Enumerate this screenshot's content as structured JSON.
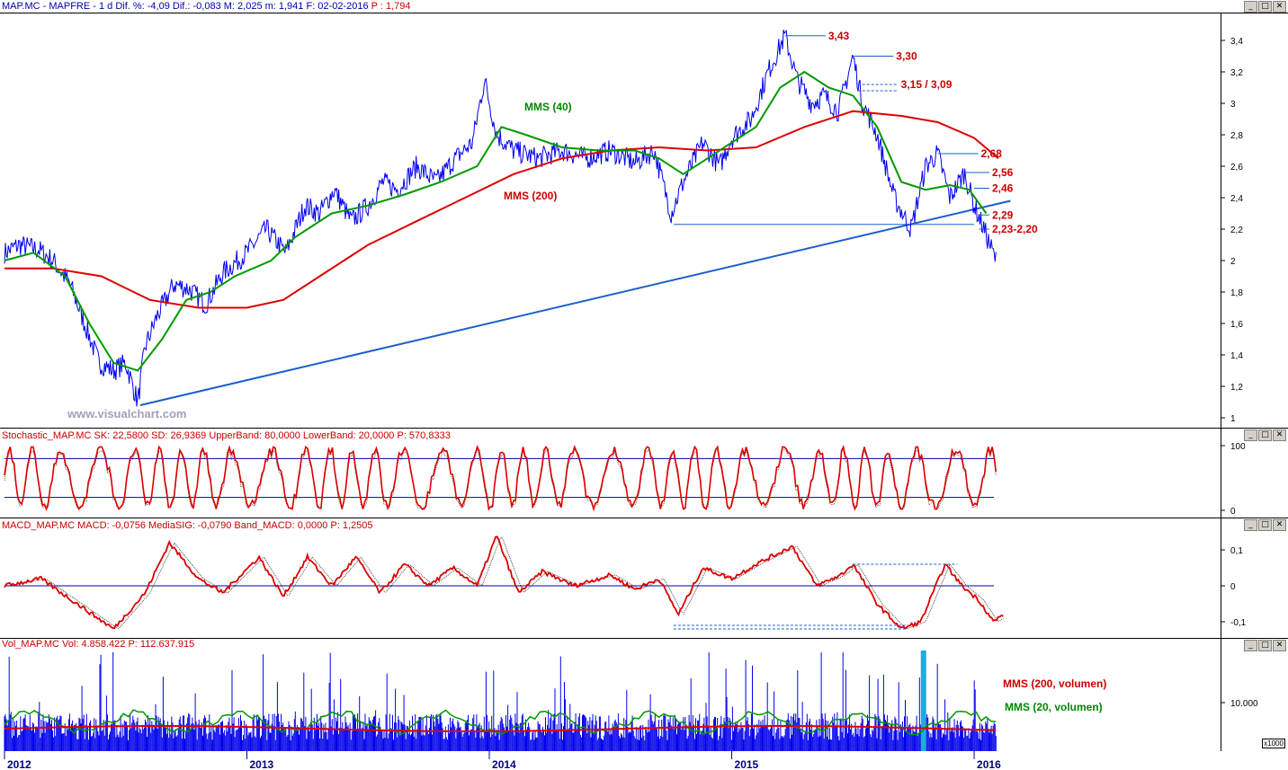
{
  "headers": {
    "price": {
      "main": "MAP.MC - MAPFRE - 1 d Dif. %: -4,09 Dif.: -0,083 M: 2,025 m: 1,941 F: 02-02-2016",
      "red": "P : 1,794"
    },
    "stoch": "Stochastic_MAP.MC SK: 22,5800 SD: 26,9369 UpperBand: 80,0000 LowerBand: 20,0000 P: 570,8333",
    "macd": "MACD_MAP.MC MACD: -0,0756 MediaSIG: -0,0790 Band_MACD: 0,0000 P: 1,2505",
    "vol": "Vol_MAP.MC Vol: 4.858.422 P: 112.637.915"
  },
  "window_buttons": [
    "_",
    "□",
    "✕"
  ],
  "watermark": "www.visualchart.com",
  "vol_unit": "x1000",
  "colors": {
    "price": "#0000ee",
    "mms40": "#009900",
    "mms200": "#dd0000",
    "trend": "#1a5fcc",
    "stoch": "#dd0000",
    "macd": "#dd0000",
    "vol": "#0000ee",
    "volhl": "#22aadd"
  },
  "chart_data": [
    {
      "type": "line",
      "x_axis": [
        "2012",
        "2013",
        "2014",
        "2015",
        "2016"
      ],
      "x_range": [
        "2012-01-02",
        "2016-02-02"
      ],
      "ylim": [
        0.95,
        3.5
      ],
      "y_ticks": [
        "3,4",
        "3,2",
        "3",
        "2,8",
        "2,6",
        "2,4",
        "2,2",
        "2",
        "1,8",
        "1,6",
        "1,4",
        "1,2",
        "1"
      ],
      "series": [
        {
          "name": "",
          "points": [
            [
              2012.0,
              2.05
            ],
            [
              2012.06,
              2.1
            ],
            [
              2012.14,
              2.07
            ],
            [
              2012.2,
              2.0
            ],
            [
              2012.27,
              1.85
            ],
            [
              2012.33,
              1.6
            ],
            [
              2012.39,
              1.35
            ],
            [
              2012.45,
              1.3
            ],
            [
              2012.5,
              1.35
            ],
            [
              2012.55,
              1.1
            ],
            [
              2012.58,
              1.45
            ],
            [
              2012.63,
              1.65
            ],
            [
              2012.7,
              1.85
            ],
            [
              2012.76,
              1.82
            ],
            [
              2012.83,
              1.72
            ],
            [
              2012.9,
              1.92
            ],
            [
              2013.0,
              2.05
            ],
            [
              2013.08,
              2.2
            ],
            [
              2013.16,
              2.05
            ],
            [
              2013.24,
              2.35
            ],
            [
              2013.3,
              2.3
            ],
            [
              2013.36,
              2.45
            ],
            [
              2013.43,
              2.25
            ],
            [
              2013.5,
              2.35
            ],
            [
              2013.56,
              2.5
            ],
            [
              2013.62,
              2.45
            ],
            [
              2013.7,
              2.6
            ],
            [
              2013.78,
              2.5
            ],
            [
              2013.86,
              2.65
            ],
            [
              2013.93,
              2.75
            ],
            [
              2013.98,
              3.15
            ],
            [
              2014.03,
              2.8
            ],
            [
              2014.1,
              2.7
            ],
            [
              2014.2,
              2.65
            ],
            [
              2014.3,
              2.7
            ],
            [
              2014.4,
              2.65
            ],
            [
              2014.5,
              2.7
            ],
            [
              2014.6,
              2.62
            ],
            [
              2014.68,
              2.7
            ],
            [
              2014.75,
              2.3
            ],
            [
              2014.8,
              2.5
            ],
            [
              2014.88,
              2.75
            ],
            [
              2014.95,
              2.6
            ],
            [
              2015.0,
              2.78
            ],
            [
              2015.08,
              2.9
            ],
            [
              2015.15,
              3.2
            ],
            [
              2015.22,
              3.43
            ],
            [
              2015.27,
              3.15
            ],
            [
              2015.33,
              3.0
            ],
            [
              2015.38,
              3.05
            ],
            [
              2015.44,
              2.95
            ],
            [
              2015.5,
              3.3
            ],
            [
              2015.54,
              3.0
            ],
            [
              2015.6,
              2.8
            ],
            [
              2015.67,
              2.4
            ],
            [
              2015.74,
              2.2
            ],
            [
              2015.8,
              2.6
            ],
            [
              2015.85,
              2.68
            ],
            [
              2015.9,
              2.4
            ],
            [
              2015.96,
              2.56
            ],
            [
              2016.0,
              2.35
            ],
            [
              2016.04,
              2.2
            ],
            [
              2016.09,
              2.0
            ]
          ]
        },
        {
          "name": "MMS (40)",
          "points": [
            [
              2012.0,
              2.0
            ],
            [
              2012.12,
              2.05
            ],
            [
              2012.25,
              1.9
            ],
            [
              2012.35,
              1.6
            ],
            [
              2012.45,
              1.35
            ],
            [
              2012.55,
              1.3
            ],
            [
              2012.65,
              1.5
            ],
            [
              2012.75,
              1.75
            ],
            [
              2012.85,
              1.8
            ],
            [
              2012.95,
              1.9
            ],
            [
              2013.1,
              2.0
            ],
            [
              2013.2,
              2.15
            ],
            [
              2013.35,
              2.3
            ],
            [
              2013.5,
              2.35
            ],
            [
              2013.65,
              2.42
            ],
            [
              2013.8,
              2.5
            ],
            [
              2013.95,
              2.6
            ],
            [
              2014.05,
              2.85
            ],
            [
              2014.15,
              2.8
            ],
            [
              2014.3,
              2.72
            ],
            [
              2014.45,
              2.7
            ],
            [
              2014.6,
              2.7
            ],
            [
              2014.7,
              2.65
            ],
            [
              2014.8,
              2.55
            ],
            [
              2014.9,
              2.65
            ],
            [
              2015.0,
              2.75
            ],
            [
              2015.1,
              2.85
            ],
            [
              2015.2,
              3.1
            ],
            [
              2015.3,
              3.2
            ],
            [
              2015.4,
              3.1
            ],
            [
              2015.5,
              3.05
            ],
            [
              2015.6,
              2.85
            ],
            [
              2015.7,
              2.5
            ],
            [
              2015.8,
              2.45
            ],
            [
              2015.9,
              2.48
            ],
            [
              2015.98,
              2.45
            ],
            [
              2016.05,
              2.3
            ]
          ]
        },
        {
          "name": "MMS (200)",
          "points": [
            [
              2012.0,
              1.95
            ],
            [
              2012.2,
              1.95
            ],
            [
              2012.4,
              1.9
            ],
            [
              2012.6,
              1.75
            ],
            [
              2012.8,
              1.7
            ],
            [
              2013.0,
              1.7
            ],
            [
              2013.15,
              1.75
            ],
            [
              2013.3,
              1.9
            ],
            [
              2013.5,
              2.1
            ],
            [
              2013.7,
              2.25
            ],
            [
              2013.9,
              2.4
            ],
            [
              2014.1,
              2.55
            ],
            [
              2014.3,
              2.65
            ],
            [
              2014.5,
              2.7
            ],
            [
              2014.7,
              2.72
            ],
            [
              2014.9,
              2.7
            ],
            [
              2015.1,
              2.72
            ],
            [
              2015.3,
              2.85
            ],
            [
              2015.5,
              2.95
            ],
            [
              2015.7,
              2.92
            ],
            [
              2015.85,
              2.88
            ],
            [
              2016.0,
              2.78
            ],
            [
              2016.1,
              2.65
            ]
          ]
        }
      ],
      "trendline": [
        [
          2012.56,
          1.08
        ],
        [
          2016.15,
          2.38
        ]
      ],
      "support_line": [
        [
          2014.76,
          2.23
        ],
        [
          2016.0,
          2.23
        ]
      ],
      "annotations": [
        {
          "label": "3,43",
          "x": 2015.22,
          "y": 3.43
        },
        {
          "label": "3,30",
          "x": 2015.5,
          "y": 3.3
        },
        {
          "label": "3,15 / 3,09",
          "x": 2015.52,
          "y": 3.12
        },
        {
          "label": "2,68",
          "x": 2015.85,
          "y": 2.68
        },
        {
          "label": "2,56",
          "x": 2015.96,
          "y": 2.56
        },
        {
          "label": "2,46",
          "x": 2016.0,
          "y": 2.46
        },
        {
          "label": "2,29",
          "x": 2016.02,
          "y": 2.29
        },
        {
          "label": "2,23-2,20",
          "x": 2016.02,
          "y": 2.2
        }
      ],
      "labels": {
        "mms40": "MMS (40)",
        "mms200": "MMS (200)"
      }
    },
    {
      "type": "line",
      "name": "Stochastic",
      "ylim": [
        0,
        100
      ],
      "y_ticks": [
        "100",
        "0"
      ],
      "bands": [
        80,
        20
      ],
      "series": [
        {
          "name": "SK",
          "values_summary": "oscillates 0-100",
          "last": 22.58
        },
        {
          "name": "SD",
          "last": 26.9369
        }
      ]
    },
    {
      "type": "line",
      "name": "MACD",
      "ylim": [
        -0.15,
        0.15
      ],
      "y_ticks": [
        "0,1",
        "0",
        "-0,1"
      ],
      "series": [
        {
          "name": "MACD",
          "points": [
            [
              2012.0,
              0.0
            ],
            [
              2012.15,
              0.02
            ],
            [
              2012.3,
              -0.05
            ],
            [
              2012.45,
              -0.12
            ],
            [
              2012.58,
              -0.02
            ],
            [
              2012.68,
              0.12
            ],
            [
              2012.8,
              0.02
            ],
            [
              2012.9,
              -0.02
            ],
            [
              2013.05,
              0.08
            ],
            [
              2013.15,
              -0.03
            ],
            [
              2013.25,
              0.08
            ],
            [
              2013.35,
              0.0
            ],
            [
              2013.45,
              0.08
            ],
            [
              2013.55,
              -0.02
            ],
            [
              2013.65,
              0.06
            ],
            [
              2013.75,
              0.0
            ],
            [
              2013.85,
              0.05
            ],
            [
              2013.95,
              0.0
            ],
            [
              2014.03,
              0.14
            ],
            [
              2014.12,
              -0.02
            ],
            [
              2014.22,
              0.04
            ],
            [
              2014.35,
              0.0
            ],
            [
              2014.5,
              0.03
            ],
            [
              2014.6,
              -0.01
            ],
            [
              2014.7,
              0.02
            ],
            [
              2014.78,
              -0.08
            ],
            [
              2014.88,
              0.05
            ],
            [
              2015.0,
              0.02
            ],
            [
              2015.1,
              0.06
            ],
            [
              2015.25,
              0.11
            ],
            [
              2015.35,
              0.0
            ],
            [
              2015.45,
              0.03
            ],
            [
              2015.5,
              0.06
            ],
            [
              2015.6,
              -0.05
            ],
            [
              2015.7,
              -0.12
            ],
            [
              2015.78,
              -0.1
            ],
            [
              2015.88,
              0.06
            ],
            [
              2015.95,
              0.0
            ],
            [
              2016.02,
              -0.04
            ],
            [
              2016.08,
              -0.1
            ],
            [
              2016.12,
              -0.08
            ]
          ]
        }
      ],
      "dotted_lines": [
        [
          2015.5,
          0.06,
          2015.93
        ],
        [
          2014.76,
          -0.11,
          2015.72
        ],
        [
          2014.76,
          -0.12,
          2015.72
        ]
      ]
    },
    {
      "type": "bar",
      "name": "Volume",
      "y_ticks": [
        "10.000"
      ],
      "unit": "x1000",
      "series": [
        {
          "name": "Vol",
          "last": 4858422
        }
      ],
      "overlays": [
        {
          "name": "MMS (200, volumen)"
        },
        {
          "name": "MMS (20, volumen)"
        }
      ]
    }
  ]
}
